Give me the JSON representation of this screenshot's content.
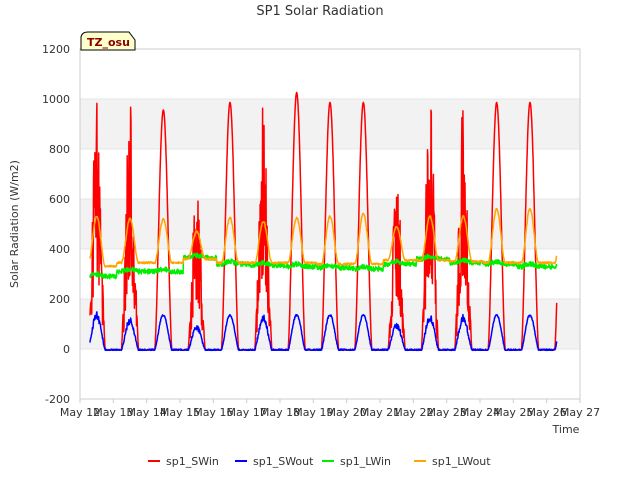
{
  "chart_data": {
    "type": "line",
    "title": "SP1 Solar Radiation",
    "xlabel": "Time",
    "ylabel": "Solar Radiation (W/m2)",
    "site_label": "TZ_osu",
    "ylim": [
      -200,
      1200
    ],
    "yticks": [
      -200,
      0,
      200,
      400,
      600,
      800,
      1000,
      1200
    ],
    "xlim": [
      0,
      15
    ],
    "xticks": [
      0,
      1,
      2,
      3,
      4,
      5,
      6,
      7,
      8,
      9,
      10,
      11,
      12,
      13,
      14,
      15
    ],
    "xtick_labels": [
      "May 12",
      "May 13",
      "May 14",
      "May 15",
      "May 16",
      "May 17",
      "May 18",
      "May 19",
      "May 20",
      "May 21",
      "May 22",
      "May 23",
      "May 24",
      "May 25",
      "May 26",
      "May 27"
    ],
    "data_start_day": 0.3,
    "data_end_day": 14.3,
    "legend_position": "bottom",
    "grid_bands": true,
    "series": [
      {
        "name": "sp1_SWin",
        "color": "#ff0000",
        "daily_peak": [
          1010,
          1000,
          960,
          680,
          990,
          1010,
          1030,
          990,
          990,
          730,
          1030,
          1010,
          990,
          990
        ]
      },
      {
        "name": "sp1_SWout",
        "color": "#0000ff",
        "daily_peak": [
          150,
          130,
          140,
          100,
          140,
          140,
          140,
          140,
          140,
          110,
          140,
          140,
          140,
          140
        ]
      },
      {
        "name": "sp1_LWin",
        "color": "#00ee00",
        "daily_mean": [
          290,
          310,
          310,
          365,
          340,
          335,
          330,
          325,
          320,
          340,
          360,
          345,
          340,
          330
        ]
      },
      {
        "name": "sp1_LWout",
        "color": "#ffa500",
        "night_base": [
          330,
          345,
          345,
          360,
          345,
          345,
          345,
          340,
          340,
          355,
          355,
          350,
          345,
          345
        ],
        "daily_peak": [
          530,
          520,
          520,
          470,
          525,
          510,
          525,
          530,
          540,
          490,
          530,
          530,
          560,
          560
        ]
      }
    ]
  }
}
